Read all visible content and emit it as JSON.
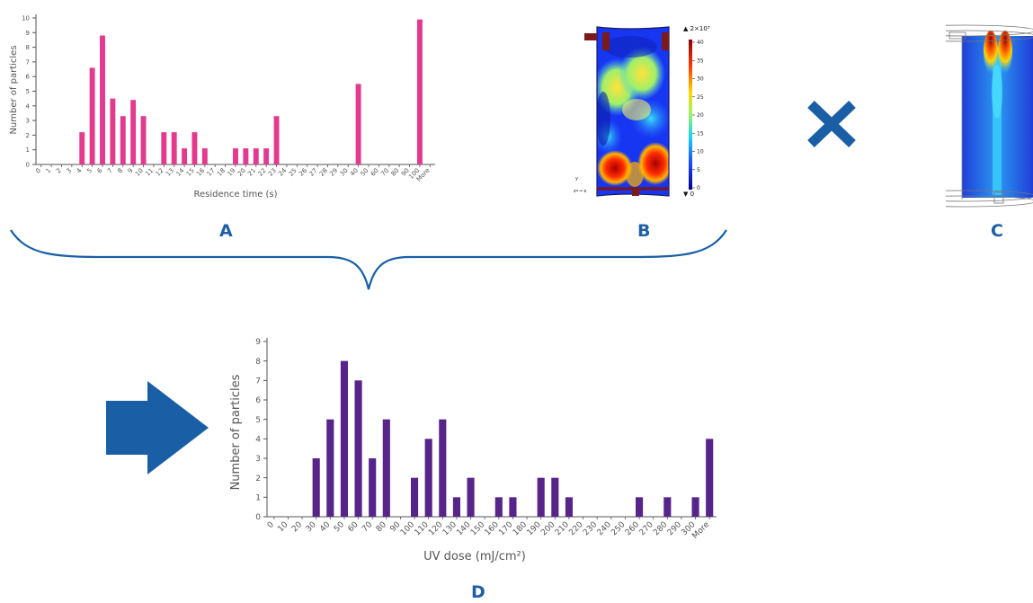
{
  "colors": {
    "accent_blue": "#1a5fa6",
    "bar_pink": "#e33a8e",
    "bar_purple": "#57248a",
    "axis_gray": "#666666"
  },
  "labels": {
    "a": "A",
    "b": "B",
    "c": "C",
    "d": "D"
  },
  "icons": {
    "operator": "multiply-icon",
    "flow": "right-arrow-icon",
    "grouping": "curly-brace-icon"
  },
  "contour_b": {
    "scale_header": "▲ 2×10³",
    "scale_ticks": [
      "40",
      "35",
      "30",
      "25",
      "20",
      "15",
      "10",
      "5",
      "0"
    ],
    "scale_footer": "▼ 0",
    "axis_y": "y",
    "axis_zx": "z•→ x"
  },
  "chart_data": [
    {
      "type": "bar",
      "xlabel": "Residence time (s)",
      "ylabel": "Number of particles",
      "ylim": [
        0,
        10
      ],
      "yticks": [
        "0",
        "1",
        "2",
        "3",
        "4",
        "5",
        "6",
        "7",
        "8",
        "9",
        "10"
      ],
      "categories": [
        "0",
        "1",
        "2",
        "3",
        "4",
        "5",
        "6",
        "7",
        "8",
        "9",
        "10",
        "11",
        "12",
        "13",
        "14",
        "15",
        "16",
        "17",
        "18",
        "19",
        "20",
        "21",
        "22",
        "23",
        "24",
        "25",
        "26",
        "27",
        "28",
        "29",
        "30",
        "40",
        "50",
        "60",
        "70",
        "80",
        "90",
        "100",
        "More"
      ],
      "values": [
        0,
        0,
        0,
        0,
        2.2,
        6.6,
        8.8,
        4.5,
        3.3,
        4.4,
        3.3,
        0,
        2.2,
        2.2,
        1.1,
        2.2,
        1.1,
        0,
        0,
        1.1,
        1.1,
        1.1,
        1.1,
        3.3,
        0,
        0,
        0,
        0,
        0,
        0,
        0,
        5.5,
        0,
        0,
        0,
        0,
        0,
        9.9,
        0
      ],
      "grid": false
    },
    {
      "type": "bar",
      "xlabel": "UV dose (mJ/cm²)",
      "ylabel": "Number of particles",
      "ylim": [
        0,
        9
      ],
      "yticks": [
        "0",
        "1",
        "2",
        "3",
        "4",
        "5",
        "6",
        "7",
        "8",
        "9"
      ],
      "categories": [
        "0",
        "10",
        "20",
        "30",
        "40",
        "50",
        "60",
        "70",
        "80",
        "90",
        "100",
        "110",
        "120",
        "130",
        "140",
        "150",
        "160",
        "170",
        "180",
        "190",
        "200",
        "210",
        "220",
        "230",
        "240",
        "250",
        "260",
        "270",
        "280",
        "290",
        "300",
        "More"
      ],
      "values": [
        0,
        0,
        0,
        3,
        5,
        8,
        7,
        3,
        5,
        0,
        2,
        4,
        5,
        1,
        2,
        0,
        1,
        1,
        0,
        2,
        2,
        1,
        0,
        0,
        0,
        0,
        1,
        0,
        1,
        0,
        1,
        4
      ],
      "grid": false
    }
  ]
}
